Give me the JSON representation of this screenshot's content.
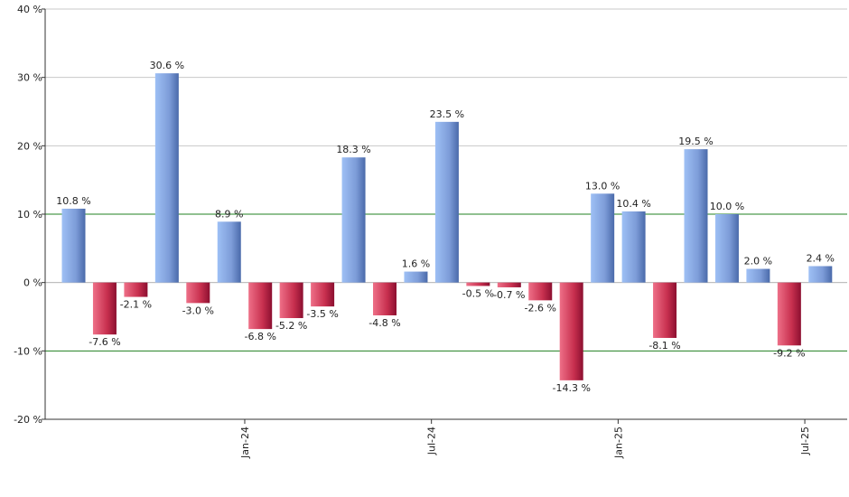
{
  "chart_data": {
    "type": "bar",
    "values": [
      10.8,
      -7.6,
      -2.1,
      30.6,
      -3.0,
      8.9,
      -6.8,
      -5.2,
      -3.5,
      18.3,
      -4.8,
      1.6,
      23.5,
      -0.5,
      -0.7,
      -2.6,
      -14.3,
      13.0,
      10.4,
      -8.1,
      19.5,
      10.0,
      2.0,
      -9.2,
      2.4
    ],
    "value_labels": [
      "10.8 %",
      "-7.6 %",
      "-2.1 %",
      "30.6 %",
      "-3.0 %",
      "8.9 %",
      "-6.8 %",
      "-5.2 %",
      "-3.5 %",
      "18.3 %",
      "-4.8 %",
      "1.6 %",
      "23.5 %",
      "-0.5 %",
      "-0.7 %",
      "-2.6 %",
      "-14.3 %",
      "13.0 %",
      "10.4 %",
      "-8.1 %",
      "19.5 %",
      "10.0 %",
      "2.0 %",
      "-9.2 %",
      "2.4 %"
    ],
    "ylim": [
      -20,
      40
    ],
    "yticks": [
      -20,
      -10,
      0,
      10,
      20,
      30,
      40
    ],
    "ytick_labels": [
      "-20 %",
      "-10 %",
      "0 %",
      "10 %",
      "20 %",
      "30 %",
      "40 %"
    ],
    "x_tick_labels": [
      {
        "label": "Jan-24",
        "after_index": 5
      },
      {
        "label": "Jul-24",
        "after_index": 11
      },
      {
        "label": "Jan-25",
        "after_index": 17
      },
      {
        "label": "Jul-25",
        "after_index": 23
      }
    ],
    "reference_lines": [
      10,
      -10
    ],
    "grid": true,
    "colors": {
      "positive_dark": "#4a6aaa",
      "positive_light": "#9ec0f5",
      "negative_dark": "#8c0f30",
      "negative_light": "#ee7088",
      "gridline": "#c8c8c8",
      "reference_line": "#208020",
      "axis": "#333333"
    }
  }
}
